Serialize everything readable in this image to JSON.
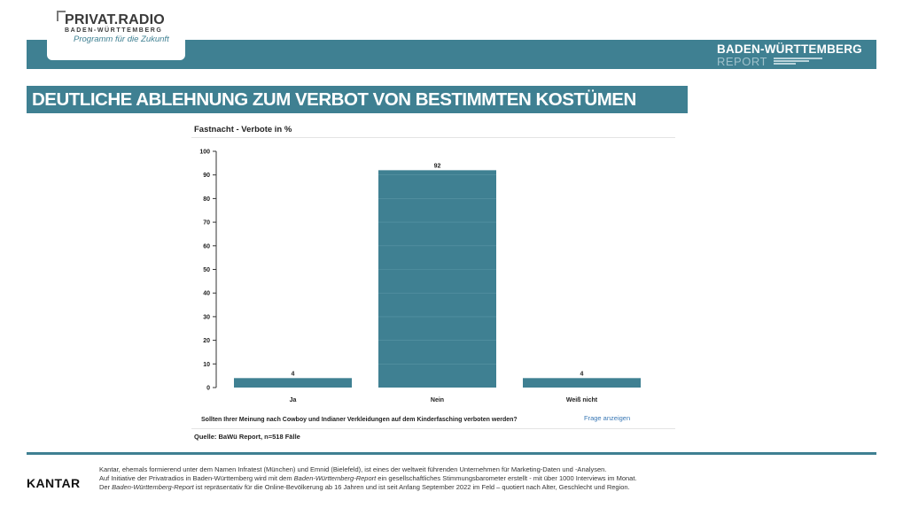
{
  "header": {
    "logo_name": "PRIVAT.RADIO",
    "logo_region": "BADEN-WÜRTTEMBERG",
    "logo_tagline": "Programm für die Zukunft",
    "report_title": "BADEN-WÜRTTEMBERG",
    "report_subtitle": "REPORT"
  },
  "headline": "DEUTLICHE ABLEHNUNG ZUM VERBOT VON BESTIMMTEN KOSTÜMEN",
  "chart_data": {
    "type": "bar",
    "title": "Fastnacht - Verbote in %",
    "categories": [
      "Ja",
      "Nein",
      "Weiß nicht"
    ],
    "values": [
      4,
      92,
      4
    ],
    "data_labels": [
      "4",
      "92",
      "4"
    ],
    "ylim": [
      0,
      100
    ],
    "yticks": [
      0,
      10,
      20,
      30,
      40,
      50,
      60,
      70,
      80,
      90,
      100
    ],
    "xlabel": "",
    "ylabel": "",
    "grid": false,
    "bar_color": "#3f8092"
  },
  "question": "Sollten Ihrer Meinung nach Cowboy und Indianer Verkleidungen auf dem Kinderfasching verboten werden?",
  "question_link": "Frage anzeigen",
  "source": "Quelle: BaWü Report, n=518 Fälle",
  "footer": {
    "brand": "KANTAR",
    "line1": "Kantar, ehemals formierend unter dem Namen Infratest (München) und Emnid (Bielefeld), ist eines der weltweit führenden Unternehmen für Marketing-Daten und -Analysen.",
    "line2_a": "Auf Initiative der Privatradios in Baden-Württemberg wird mit dem ",
    "line2_em": "Baden-Württemberg-Report",
    "line2_b": " ein gesellschaftliches Stimmungsbarometer erstellt - mit über 1000 Interviews im Monat.",
    "line3_a": "Der ",
    "line3_em": "Baden-Württemberg-Report",
    "line3_b": " ist repräsentativ für die Online-Bevölkerung ab 16 Jahren und ist seit Anfang September 2022 im Feld – quotiert nach Alter, Geschlecht und Region."
  }
}
